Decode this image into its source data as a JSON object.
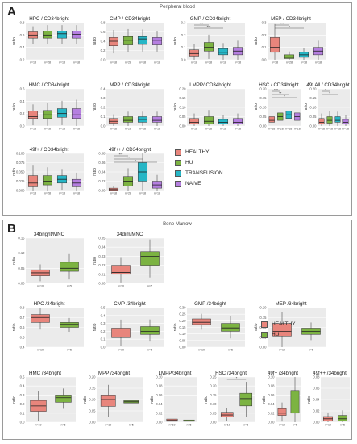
{
  "panelA": {
    "letter": "A",
    "title": "Peripheral blood",
    "group_counts": [
      "n=18",
      "n=28",
      "n=18",
      "n=18"
    ],
    "legend": [
      {
        "label": "HEALTHY",
        "color": "#e8857c"
      },
      {
        "label": "HU",
        "color": "#7cb342"
      },
      {
        "label": "TRANSFUSION",
        "color": "#26b6c6"
      },
      {
        "label": "NAIVE",
        "color": "#b57fe0"
      }
    ]
  },
  "panelB": {
    "letter": "B",
    "title": "Bone Marrow",
    "group_counts": [
      "n=10",
      "n=5"
    ],
    "legend": [
      {
        "label": "HEALTHY",
        "color": "#e8857c"
      },
      {
        "label": "HU",
        "color": "#7cb342"
      }
    ]
  },
  "chart_data": [
    {
      "type": "box",
      "panel": "A",
      "title": "HPC / CD34bright",
      "ylabel": "ratio",
      "ylim": [
        0.2,
        0.8
      ],
      "yticks": [
        "0.2",
        "0.4",
        "0.6",
        "0.8"
      ],
      "series": [
        {
          "name": "HEALTHY",
          "box": [
            0.55,
            0.6,
            0.65
          ]
        },
        {
          "name": "HU",
          "box": [
            0.55,
            0.6,
            0.66
          ]
        },
        {
          "name": "TRANSFUSION",
          "box": [
            0.55,
            0.62,
            0.66
          ]
        },
        {
          "name": "NAIVE",
          "box": [
            0.55,
            0.61,
            0.66
          ]
        }
      ]
    },
    {
      "type": "box",
      "panel": "A",
      "title": "CMP / CD34bright",
      "ylabel": "ratio",
      "ylim": [
        0,
        0.8
      ],
      "yticks": [
        "0.0",
        "0.2",
        "0.4",
        "0.6",
        "0.8"
      ],
      "series": [
        {
          "name": "HEALTHY",
          "box": [
            0.3,
            0.4,
            0.48
          ]
        },
        {
          "name": "HU",
          "box": [
            0.32,
            0.42,
            0.5
          ]
        },
        {
          "name": "TRANSFUSION",
          "box": [
            0.33,
            0.45,
            0.5
          ]
        },
        {
          "name": "NAIVE",
          "box": [
            0.32,
            0.42,
            0.48
          ]
        }
      ]
    },
    {
      "type": "box",
      "panel": "A",
      "title": "GMP / CD34bright",
      "ylabel": "ratio",
      "ylim": [
        0,
        0.3
      ],
      "yticks": [
        "0.0",
        "0.1",
        "0.2",
        "0.3"
      ],
      "sig": [
        "***",
        "***"
      ],
      "series": [
        {
          "name": "HEALTHY",
          "box": [
            0.03,
            0.05,
            0.08
          ]
        },
        {
          "name": "HU",
          "box": [
            0.07,
            0.1,
            0.14
          ]
        },
        {
          "name": "TRANSFUSION",
          "box": [
            0.04,
            0.06,
            0.09
          ]
        },
        {
          "name": "NAIVE",
          "box": [
            0.04,
            0.07,
            0.1
          ]
        }
      ]
    },
    {
      "type": "box",
      "panel": "A",
      "title": "MEP / CD34bright",
      "ylabel": "ratio",
      "ylim": [
        0,
        0.3
      ],
      "yticks": [
        "0.0",
        "0.1",
        "0.2",
        "0.3"
      ],
      "sig": [
        "***",
        "*"
      ],
      "series": [
        {
          "name": "HEALTHY",
          "box": [
            0.06,
            0.1,
            0.18
          ]
        },
        {
          "name": "HU",
          "box": [
            0.01,
            0.02,
            0.04
          ]
        },
        {
          "name": "TRANSFUSION",
          "box": [
            0.02,
            0.04,
            0.06
          ]
        },
        {
          "name": "NAIVE",
          "box": [
            0.04,
            0.07,
            0.1
          ]
        }
      ]
    },
    {
      "type": "box",
      "panel": "A",
      "title": "HMC / CD34bright",
      "ylabel": "ratio",
      "ylim": [
        0,
        0.6
      ],
      "yticks": [
        "0.0",
        "0.2",
        "0.4",
        "0.6"
      ],
      "series": [
        {
          "name": "HEALTHY",
          "box": [
            0.12,
            0.15,
            0.24
          ]
        },
        {
          "name": "HU",
          "box": [
            0.12,
            0.18,
            0.25
          ]
        },
        {
          "name": "TRANSFUSION",
          "box": [
            0.14,
            0.2,
            0.28
          ]
        },
        {
          "name": "NAIVE",
          "box": [
            0.12,
            0.18,
            0.28
          ]
        }
      ]
    },
    {
      "type": "box",
      "panel": "A",
      "title": "MPP / CD34bright",
      "ylabel": "ratio",
      "ylim": [
        0,
        0.4
      ],
      "yticks": [
        "0.0",
        "0.1",
        "0.2",
        "0.3",
        "0.4"
      ],
      "series": [
        {
          "name": "HEALTHY",
          "box": [
            0.03,
            0.05,
            0.08
          ]
        },
        {
          "name": "HU",
          "box": [
            0.04,
            0.06,
            0.1
          ]
        },
        {
          "name": "TRANSFUSION",
          "box": [
            0.04,
            0.07,
            0.1
          ]
        },
        {
          "name": "NAIVE",
          "box": [
            0.04,
            0.06,
            0.1
          ]
        }
      ]
    },
    {
      "type": "box",
      "panel": "A",
      "title": "LMPP/ CD34bright",
      "ylabel": "ratio",
      "ylim": [
        0,
        0.2
      ],
      "yticks": [
        "0.00",
        "0.05",
        "0.10",
        "0.15",
        "0.20"
      ],
      "series": [
        {
          "name": "HEALTHY",
          "box": [
            0.01,
            0.02,
            0.04
          ]
        },
        {
          "name": "HU",
          "box": [
            0.01,
            0.025,
            0.05
          ]
        },
        {
          "name": "TRANSFUSION",
          "box": [
            0.01,
            0.02,
            0.035
          ]
        },
        {
          "name": "NAIVE",
          "box": [
            0.01,
            0.02,
            0.04
          ]
        }
      ]
    },
    {
      "type": "box",
      "panel": "A",
      "title": "HSC / CD34bright",
      "ylabel": "ratio",
      "ylim": [
        0,
        0.2
      ],
      "yticks": [
        "0.00",
        "0.05",
        "0.10",
        "0.15",
        "0.20"
      ],
      "sig": [
        "***",
        "**",
        "*"
      ],
      "series": [
        {
          "name": "HEALTHY",
          "box": [
            0.02,
            0.03,
            0.05
          ]
        },
        {
          "name": "HU",
          "box": [
            0.03,
            0.05,
            0.07
          ]
        },
        {
          "name": "TRANSFUSION",
          "box": [
            0.04,
            0.06,
            0.08
          ]
        },
        {
          "name": "NAIVE",
          "box": [
            0.03,
            0.05,
            0.07
          ]
        }
      ]
    },
    {
      "type": "box",
      "panel": "A",
      "title": "49f All / CD34bright",
      "ylabel": "ratio",
      "ylim": [
        0,
        0.2
      ],
      "yticks": [
        "0.00",
        "0.05",
        "0.10",
        "0.15",
        "0.20"
      ],
      "sig": [
        "*",
        "*"
      ],
      "series": [
        {
          "name": "HEALTHY",
          "box": [
            0.01,
            0.02,
            0.04
          ]
        },
        {
          "name": "HU",
          "box": [
            0.015,
            0.03,
            0.05
          ]
        },
        {
          "name": "TRANSFUSION",
          "box": [
            0.02,
            0.03,
            0.05
          ]
        },
        {
          "name": "NAIVE",
          "box": [
            0.01,
            0.02,
            0.035
          ]
        }
      ]
    },
    {
      "type": "box",
      "panel": "A",
      "title": "49f+ / CD34bright",
      "ylabel": "ratio",
      "ylim": [
        0,
        0.1
      ],
      "yticks": [
        "0.000",
        "0.025",
        "0.050",
        "0.075",
        "0.100"
      ],
      "series": [
        {
          "name": "HEALTHY",
          "box": [
            0.01,
            0.02,
            0.04
          ]
        },
        {
          "name": "HU",
          "box": [
            0.015,
            0.025,
            0.04
          ]
        },
        {
          "name": "TRANSFUSION",
          "box": [
            0.02,
            0.03,
            0.04
          ]
        },
        {
          "name": "NAIVE",
          "box": [
            0.01,
            0.02,
            0.03
          ]
        }
      ]
    },
    {
      "type": "box",
      "panel": "A",
      "title": "49f++ / CD34bright",
      "ylabel": "ratio",
      "ylim": [
        0,
        0.08
      ],
      "yticks": [
        "0.00",
        "0.02",
        "0.04",
        "0.06",
        "0.08"
      ],
      "sig": [
        "***",
        "***",
        "*"
      ],
      "series": [
        {
          "name": "HEALTHY",
          "box": [
            0.0,
            0.002,
            0.005
          ]
        },
        {
          "name": "HU",
          "box": [
            0.01,
            0.02,
            0.03
          ]
        },
        {
          "name": "TRANSFUSION",
          "box": [
            0.02,
            0.04,
            0.06
          ]
        },
        {
          "name": "NAIVE",
          "box": [
            0.005,
            0.012,
            0.02
          ]
        }
      ]
    },
    {
      "type": "box",
      "panel": "B",
      "title": "34bright/MNC",
      "ylabel": "ratio",
      "ylim": [
        0,
        0.15
      ],
      "yticks": [
        "0.00",
        "0.05",
        "0.10",
        "0.15"
      ],
      "series": [
        {
          "name": "HEALTHY",
          "box": [
            0.025,
            0.035,
            0.045
          ]
        },
        {
          "name": "HU",
          "box": [
            0.04,
            0.05,
            0.07
          ]
        }
      ]
    },
    {
      "type": "box",
      "panel": "B",
      "title": "34dim/MNC",
      "ylabel": "ratio",
      "ylim": [
        0,
        0.05
      ],
      "yticks": [
        "0.00",
        "0.01",
        "0.02",
        "0.03",
        "0.04",
        "0.05"
      ],
      "series": [
        {
          "name": "HEALTHY",
          "box": [
            0.01,
            0.012,
            0.02
          ]
        },
        {
          "name": "HU",
          "box": [
            0.02,
            0.03,
            0.035
          ]
        }
      ]
    },
    {
      "type": "box",
      "panel": "B",
      "title": "HPC /34bright",
      "ylabel": "ratio",
      "ylim": [
        0.4,
        0.8
      ],
      "yticks": [
        "0.4",
        "0.5",
        "0.6",
        "0.7",
        "0.8"
      ],
      "series": [
        {
          "name": "HEALTHY",
          "box": [
            0.65,
            0.7,
            0.73
          ]
        },
        {
          "name": "HU",
          "box": [
            0.6,
            0.63,
            0.65
          ]
        }
      ]
    },
    {
      "type": "box",
      "panel": "B",
      "title": "CMP /34bright",
      "ylabel": "ratio",
      "ylim": [
        0,
        0.5
      ],
      "yticks": [
        "0.0",
        "0.1",
        "0.2",
        "0.3",
        "0.4",
        "0.5"
      ],
      "series": [
        {
          "name": "HEALTHY",
          "box": [
            0.12,
            0.18,
            0.24
          ]
        },
        {
          "name": "HU",
          "box": [
            0.16,
            0.2,
            0.26
          ]
        }
      ]
    },
    {
      "type": "box",
      "panel": "B",
      "title": "GMP /34bright",
      "ylabel": "ratio",
      "ylim": [
        0,
        0.35
      ],
      "yticks": [
        "0.00",
        "0.05",
        "0.10",
        "0.15",
        "0.20",
        "0.25",
        "0.30"
      ],
      "series": [
        {
          "name": "HEALTHY",
          "box": [
            0.2,
            0.22,
            0.25
          ]
        },
        {
          "name": "HU",
          "box": [
            0.14,
            0.17,
            0.21
          ]
        }
      ]
    },
    {
      "type": "box",
      "panel": "B",
      "title": "MEP /34bright",
      "ylabel": "ratio",
      "ylim": [
        0,
        0.25
      ],
      "yticks": [
        "0.00",
        "0.05",
        "0.10",
        "0.15",
        "0.20"
      ],
      "series": [
        {
          "name": "HEALTHY",
          "box": [
            0.07,
            0.1,
            0.15
          ]
        },
        {
          "name": "HU",
          "box": [
            0.08,
            0.1,
            0.12
          ]
        }
      ]
    },
    {
      "type": "box",
      "panel": "B",
      "title": "HMC /34bright",
      "ylabel": "ratio",
      "ylim": [
        0,
        0.5
      ],
      "yticks": [
        "0.0",
        "0.1",
        "0.2",
        "0.3",
        "0.4",
        "0.5"
      ],
      "series": [
        {
          "name": "HEALTHY",
          "box": [
            0.12,
            0.18,
            0.24
          ]
        },
        {
          "name": "HU",
          "box": [
            0.22,
            0.27,
            0.3
          ]
        }
      ]
    },
    {
      "type": "box",
      "panel": "B",
      "title": "MPP /34bright",
      "ylabel": "ratio",
      "ylim": [
        0,
        0.2
      ],
      "yticks": [
        "0.00",
        "0.05",
        "0.10",
        "0.15",
        "0.20"
      ],
      "series": [
        {
          "name": "HEALTHY",
          "box": [
            0.07,
            0.1,
            0.12
          ]
        },
        {
          "name": "HU",
          "box": [
            0.085,
            0.09,
            0.095
          ]
        }
      ]
    },
    {
      "type": "box",
      "panel": "B",
      "title": "LMPP/34bright",
      "ylabel": "ratio",
      "ylim": [
        0,
        0.1
      ],
      "yticks": [
        "0.00",
        "0.02",
        "0.04",
        "0.06",
        "0.08",
        "0.10"
      ],
      "series": [
        {
          "name": "HEALTHY",
          "box": [
            0.002,
            0.004,
            0.007
          ]
        },
        {
          "name": "HU",
          "box": [
            0.002,
            0.003,
            0.005
          ]
        }
      ]
    },
    {
      "type": "box",
      "panel": "B",
      "title": "HSC /34bright",
      "ylabel": "ratio",
      "ylim": [
        0,
        0.25
      ],
      "yticks": [
        "0.00",
        "0.05",
        "0.10",
        "0.15",
        "0.20",
        "0.25"
      ],
      "sig": [
        "*"
      ],
      "series": [
        {
          "name": "HEALTHY",
          "box": [
            0.03,
            0.04,
            0.055
          ]
        },
        {
          "name": "HU",
          "box": [
            0.09,
            0.13,
            0.16
          ]
        }
      ]
    },
    {
      "type": "box",
      "panel": "B",
      "title": "49f+ /34bright",
      "ylabel": "ratio",
      "ylim": [
        0,
        0.1
      ],
      "yticks": [
        "0.00",
        "0.02",
        "0.04",
        "0.06",
        "0.08",
        "0.10"
      ],
      "series": [
        {
          "name": "HEALTHY",
          "box": [
            0.015,
            0.02,
            0.03
          ]
        },
        {
          "name": "HU",
          "box": [
            0.02,
            0.04,
            0.07
          ]
        }
      ]
    },
    {
      "type": "box",
      "panel": "B",
      "title": "49f++ /34bright",
      "ylabel": "ratio",
      "ylim": [
        0,
        0.08
      ],
      "yticks": [
        "0.00",
        "0.02",
        "0.04",
        "0.06",
        "0.08"
      ],
      "series": [
        {
          "name": "HEALTHY",
          "box": [
            0.002,
            0.006,
            0.01
          ]
        },
        {
          "name": "HU",
          "box": [
            0.002,
            0.006,
            0.012
          ]
        }
      ]
    }
  ]
}
